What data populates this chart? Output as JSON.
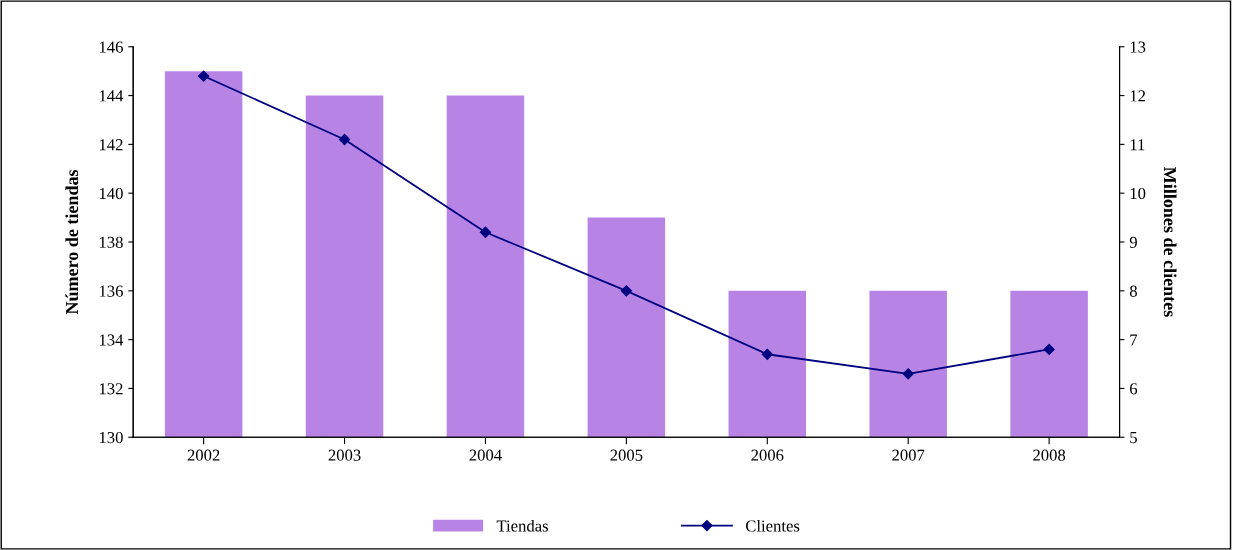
{
  "chart_data": {
    "type": "bar",
    "categories": [
      "2002",
      "2003",
      "2004",
      "2005",
      "2006",
      "2007",
      "2008"
    ],
    "ylabel": "Número de tiendas",
    "y2label": "Millones de clientes",
    "ylim": [
      130,
      146
    ],
    "yticks": [
      130,
      132,
      134,
      136,
      138,
      140,
      142,
      144,
      146
    ],
    "y2lim": [
      5,
      13
    ],
    "y2ticks": [
      5,
      6,
      7,
      8,
      9,
      10,
      11,
      12,
      13
    ],
    "legend": "bottom",
    "grid": false,
    "series": [
      {
        "name": "Tiendas",
        "color": "#b784e6",
        "values": [
          145,
          144,
          144,
          139,
          136,
          136,
          136
        ]
      },
      {
        "name": "Clientes",
        "type": "line",
        "axis": "y2",
        "color": "#000080",
        "marker": "diamond",
        "line_style": "solid",
        "values": [
          12.4,
          11.1,
          9.2,
          8.0,
          6.7,
          6.3,
          6.8
        ]
      }
    ]
  }
}
